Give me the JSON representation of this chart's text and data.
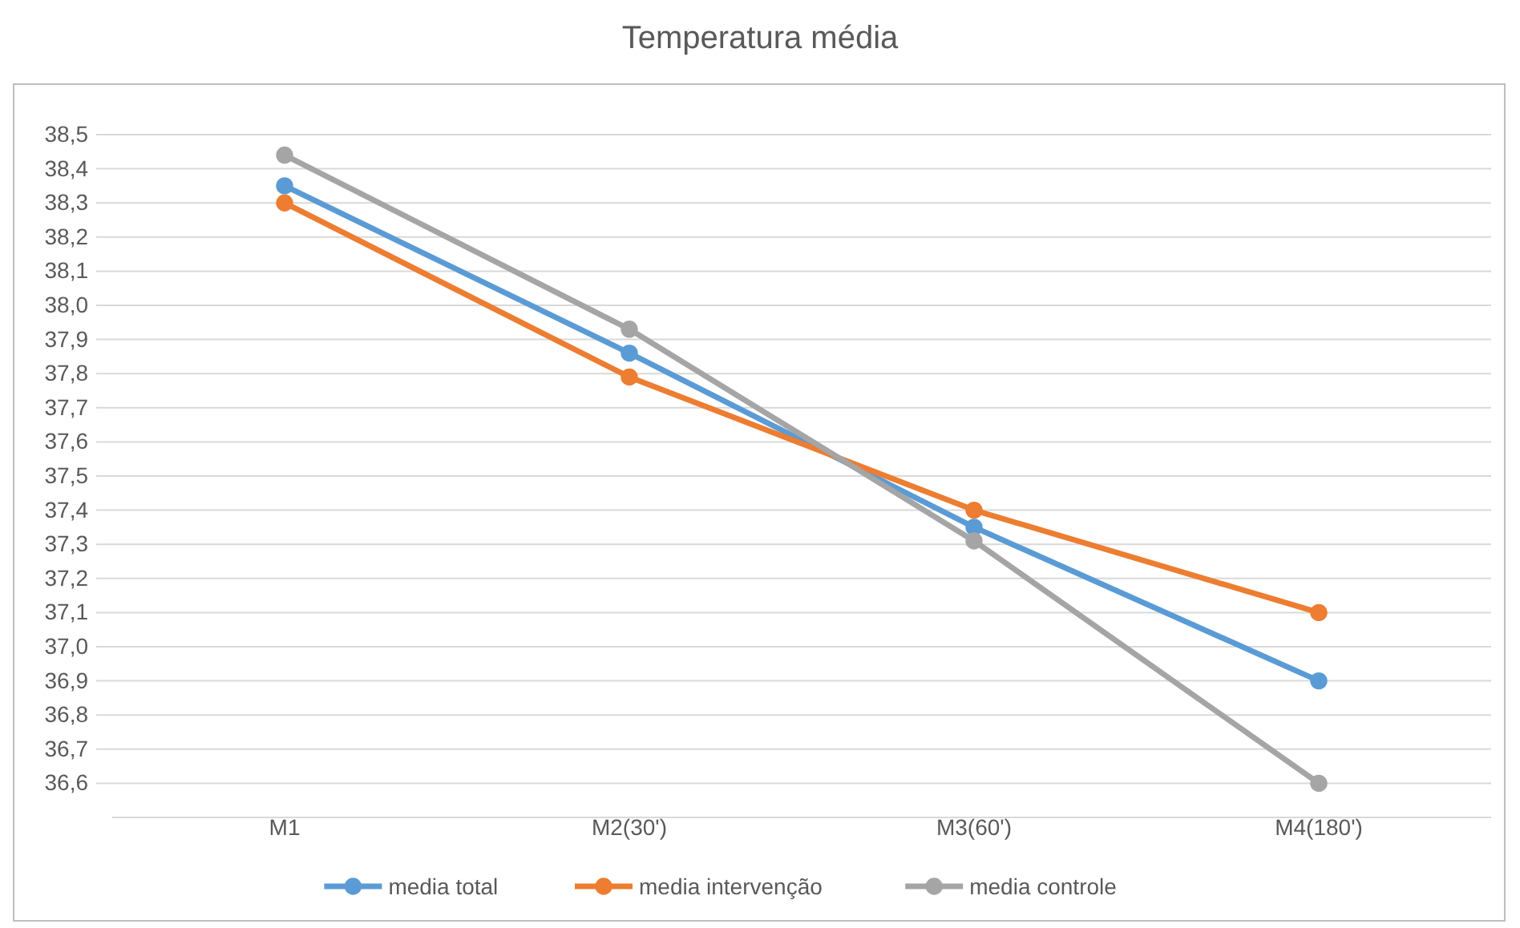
{
  "chart_data": {
    "type": "line",
    "title": "Temperatura média",
    "categories": [
      "M1",
      "M2(30')",
      "M3(60')",
      "M4(180')"
    ],
    "series": [
      {
        "name": "media total",
        "color": "#5b9bd5",
        "values": [
          38.35,
          37.86,
          37.35,
          36.9
        ]
      },
      {
        "name": "media intervenção",
        "color": "#ed7d31",
        "values": [
          38.3,
          37.79,
          37.4,
          37.1
        ]
      },
      {
        "name": "media controle",
        "color": "#a5a5a5",
        "values": [
          38.44,
          37.93,
          37.31,
          36.6
        ]
      }
    ],
    "ylim": [
      36.5,
      38.5
    ],
    "yticks": [
      {
        "value": 36.6,
        "label": "36,6"
      },
      {
        "value": 36.7,
        "label": "36,7"
      },
      {
        "value": 36.8,
        "label": "36,8"
      },
      {
        "value": 36.9,
        "label": "36,9"
      },
      {
        "value": 37.0,
        "label": "37,0"
      },
      {
        "value": 37.1,
        "label": "37,1"
      },
      {
        "value": 37.2,
        "label": "37,2"
      },
      {
        "value": 37.3,
        "label": "37,3"
      },
      {
        "value": 37.4,
        "label": "37,4"
      },
      {
        "value": 37.5,
        "label": "37,5"
      },
      {
        "value": 37.6,
        "label": "37,6"
      },
      {
        "value": 37.7,
        "label": "37,7"
      },
      {
        "value": 37.8,
        "label": "37,8"
      },
      {
        "value": 37.9,
        "label": "37,9"
      },
      {
        "value": 38.0,
        "label": "38,0"
      },
      {
        "value": 38.1,
        "label": "38,1"
      },
      {
        "value": 38.2,
        "label": "38,2"
      },
      {
        "value": 38.3,
        "label": "38,3"
      },
      {
        "value": 38.4,
        "label": "38,4"
      },
      {
        "value": 38.5,
        "label": "38,5"
      }
    ],
    "grid": "y",
    "legend": "bottom",
    "marker": "circle",
    "line_style": "solid"
  }
}
